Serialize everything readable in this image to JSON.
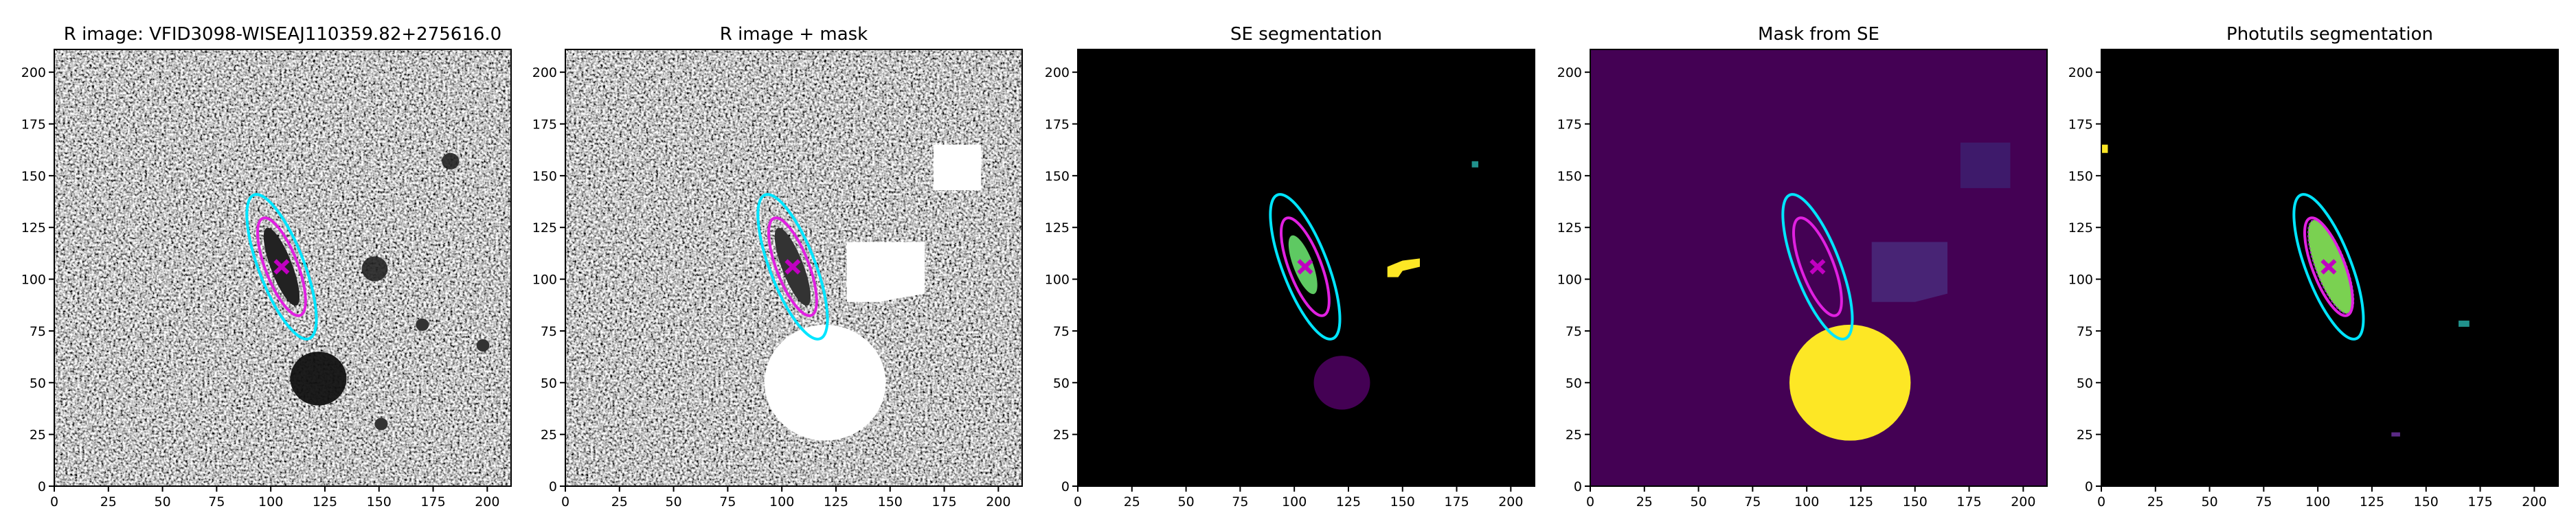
{
  "chart_data": [
    {
      "type": "image",
      "title": "R image: VFID3098-WISEAJ110359.82+275616.0",
      "xlim": [
        0,
        211
      ],
      "ylim": [
        0,
        211
      ],
      "xticks": [
        0,
        25,
        50,
        75,
        100,
        125,
        150,
        175,
        200
      ],
      "yticks": [
        0,
        25,
        50,
        75,
        100,
        125,
        150,
        175,
        200
      ]
    },
    {
      "type": "image",
      "title": "R image + mask",
      "xlim": [
        0,
        211
      ],
      "ylim": [
        0,
        211
      ],
      "xticks": [
        0,
        25,
        50,
        75,
        100,
        125,
        150,
        175,
        200
      ],
      "yticks": [
        0,
        25,
        50,
        75,
        100,
        125,
        150,
        175,
        200
      ]
    },
    {
      "type": "image",
      "title": "SE segmentation",
      "xlim": [
        0,
        211
      ],
      "ylim": [
        0,
        211
      ],
      "xticks": [
        0,
        25,
        50,
        75,
        100,
        125,
        150,
        175,
        200
      ],
      "yticks": [
        0,
        25,
        50,
        75,
        100,
        125,
        150,
        175,
        200
      ]
    },
    {
      "type": "image",
      "title": "Mask from SE",
      "xlim": [
        0,
        211
      ],
      "ylim": [
        0,
        211
      ],
      "xticks": [
        0,
        25,
        50,
        75,
        100,
        125,
        150,
        175,
        200
      ],
      "yticks": [
        0,
        25,
        50,
        75,
        100,
        125,
        150,
        175,
        200
      ]
    },
    {
      "type": "image",
      "title": "Photutils segmentation",
      "xlim": [
        0,
        211
      ],
      "ylim": [
        0,
        211
      ],
      "xticks": [
        0,
        25,
        50,
        75,
        100,
        125,
        150,
        175,
        200
      ],
      "yticks": [
        0,
        25,
        50,
        75,
        100,
        125,
        150,
        175,
        200
      ]
    }
  ]
}
